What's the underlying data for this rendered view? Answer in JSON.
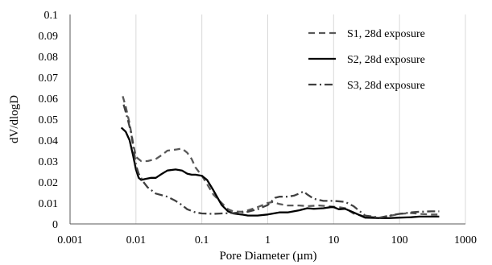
{
  "chart_data": {
    "type": "line",
    "title": "",
    "xlabel": "Pore Diameter (µm)",
    "ylabel": "dV/dlogD",
    "x_scale": "log",
    "xlim": [
      0.001,
      1000
    ],
    "ylim": [
      0,
      0.1
    ],
    "x_ticks": [
      0.001,
      0.01,
      0.1,
      1,
      10,
      100,
      1000
    ],
    "x_tick_labels": [
      "0.001",
      "0.01",
      "0.1",
      "1",
      "10",
      "100",
      "1000"
    ],
    "y_ticks": [
      0,
      0.01,
      0.02,
      0.03,
      0.04,
      0.05,
      0.06,
      0.07,
      0.08,
      0.09,
      0.1
    ],
    "y_tick_labels": [
      "0",
      "0.01",
      "0.02",
      "0.03",
      "0.04",
      "0.05",
      "0.06",
      "0.07",
      "0.08",
      "0.09",
      "0.1"
    ],
    "grid": "vertical",
    "legend_position": "top-right",
    "series": [
      {
        "name": "S1, 28d exposure",
        "style": "dashed",
        "color": "#595959",
        "points": [
          [
            0.0063,
            0.061
          ],
          [
            0.007,
            0.056
          ],
          [
            0.008,
            0.048
          ],
          [
            0.009,
            0.039
          ],
          [
            0.01,
            0.032
          ],
          [
            0.012,
            0.03
          ],
          [
            0.015,
            0.03
          ],
          [
            0.02,
            0.031
          ],
          [
            0.025,
            0.033
          ],
          [
            0.03,
            0.035
          ],
          [
            0.04,
            0.0355
          ],
          [
            0.05,
            0.036
          ],
          [
            0.06,
            0.034
          ],
          [
            0.07,
            0.031
          ],
          [
            0.08,
            0.027
          ],
          [
            0.1,
            0.023
          ],
          [
            0.12,
            0.019
          ],
          [
            0.15,
            0.014
          ],
          [
            0.2,
            0.01
          ],
          [
            0.25,
            0.007
          ],
          [
            0.3,
            0.006
          ],
          [
            0.4,
            0.0058
          ],
          [
            0.5,
            0.0065
          ],
          [
            0.7,
            0.008
          ],
          [
            1,
            0.01
          ],
          [
            1.2,
            0.0105
          ],
          [
            1.5,
            0.0095
          ],
          [
            2,
            0.0088
          ],
          [
            3,
            0.0088
          ],
          [
            4,
            0.0085
          ],
          [
            6,
            0.0088
          ],
          [
            8,
            0.0085
          ],
          [
            10,
            0.0082
          ],
          [
            12,
            0.008
          ],
          [
            15,
            0.0075
          ],
          [
            20,
            0.005
          ],
          [
            30,
            0.0035
          ],
          [
            50,
            0.003
          ],
          [
            70,
            0.0038
          ],
          [
            100,
            0.0048
          ],
          [
            150,
            0.0052
          ],
          [
            200,
            0.0048
          ],
          [
            300,
            0.0045
          ],
          [
            400,
            0.0045
          ]
        ]
      },
      {
        "name": "S2, 28d exposure",
        "style": "solid",
        "color": "#000000",
        "points": [
          [
            0.006,
            0.046
          ],
          [
            0.007,
            0.044
          ],
          [
            0.008,
            0.04
          ],
          [
            0.009,
            0.033
          ],
          [
            0.01,
            0.026
          ],
          [
            0.011,
            0.022
          ],
          [
            0.012,
            0.021
          ],
          [
            0.014,
            0.0215
          ],
          [
            0.017,
            0.022
          ],
          [
            0.02,
            0.022
          ],
          [
            0.025,
            0.024
          ],
          [
            0.03,
            0.0255
          ],
          [
            0.04,
            0.026
          ],
          [
            0.05,
            0.0255
          ],
          [
            0.06,
            0.024
          ],
          [
            0.07,
            0.0235
          ],
          [
            0.08,
            0.0235
          ],
          [
            0.1,
            0.023
          ],
          [
            0.12,
            0.021
          ],
          [
            0.15,
            0.016
          ],
          [
            0.2,
            0.009
          ],
          [
            0.25,
            0.006
          ],
          [
            0.3,
            0.005
          ],
          [
            0.4,
            0.0045
          ],
          [
            0.5,
            0.004
          ],
          [
            0.7,
            0.004
          ],
          [
            1,
            0.0045
          ],
          [
            1.5,
            0.0055
          ],
          [
            2,
            0.0055
          ],
          [
            3,
            0.0065
          ],
          [
            4,
            0.0075
          ],
          [
            5,
            0.0072
          ],
          [
            7,
            0.0075
          ],
          [
            9,
            0.008
          ],
          [
            10,
            0.008
          ],
          [
            12,
            0.007
          ],
          [
            15,
            0.0072
          ],
          [
            20,
            0.0055
          ],
          [
            30,
            0.003
          ],
          [
            50,
            0.0028
          ],
          [
            70,
            0.0028
          ],
          [
            100,
            0.003
          ],
          [
            150,
            0.0032
          ],
          [
            200,
            0.0035
          ],
          [
            300,
            0.0035
          ],
          [
            400,
            0.0035
          ]
        ]
      },
      {
        "name": "S3, 28d exposure",
        "style": "dash-dot",
        "color": "#404040",
        "points": [
          [
            0.0065,
            0.057
          ],
          [
            0.0075,
            0.05
          ],
          [
            0.0085,
            0.043
          ],
          [
            0.01,
            0.028
          ],
          [
            0.011,
            0.024
          ],
          [
            0.013,
            0.02
          ],
          [
            0.015,
            0.0175
          ],
          [
            0.02,
            0.0145
          ],
          [
            0.03,
            0.013
          ],
          [
            0.04,
            0.011
          ],
          [
            0.05,
            0.009
          ],
          [
            0.06,
            0.007
          ],
          [
            0.08,
            0.0055
          ],
          [
            0.1,
            0.005
          ],
          [
            0.15,
            0.0048
          ],
          [
            0.2,
            0.005
          ],
          [
            0.3,
            0.0052
          ],
          [
            0.5,
            0.0058
          ],
          [
            0.7,
            0.007
          ],
          [
            1,
            0.009
          ],
          [
            1.3,
            0.0125
          ],
          [
            1.5,
            0.013
          ],
          [
            2,
            0.013
          ],
          [
            2.5,
            0.0135
          ],
          [
            3,
            0.0145
          ],
          [
            3.5,
            0.0155
          ],
          [
            4,
            0.014
          ],
          [
            5,
            0.012
          ],
          [
            7,
            0.011
          ],
          [
            10,
            0.011
          ],
          [
            12,
            0.0108
          ],
          [
            15,
            0.0105
          ],
          [
            20,
            0.0085
          ],
          [
            30,
            0.004
          ],
          [
            50,
            0.003
          ],
          [
            70,
            0.004
          ],
          [
            100,
            0.0048
          ],
          [
            150,
            0.0055
          ],
          [
            200,
            0.0058
          ],
          [
            300,
            0.006
          ],
          [
            400,
            0.006
          ]
        ]
      }
    ]
  }
}
